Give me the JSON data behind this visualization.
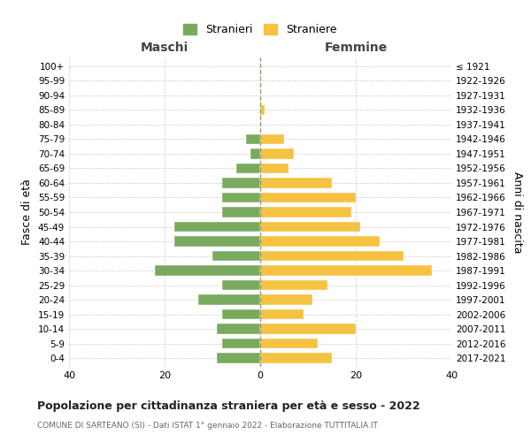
{
  "age_groups": [
    "0-4",
    "5-9",
    "10-14",
    "15-19",
    "20-24",
    "25-29",
    "30-34",
    "35-39",
    "40-44",
    "45-49",
    "50-54",
    "55-59",
    "60-64",
    "65-69",
    "70-74",
    "75-79",
    "80-84",
    "85-89",
    "90-94",
    "95-99",
    "100+"
  ],
  "birth_years": [
    "2017-2021",
    "2012-2016",
    "2007-2011",
    "2002-2006",
    "1997-2001",
    "1992-1996",
    "1987-1991",
    "1982-1986",
    "1977-1981",
    "1972-1976",
    "1967-1971",
    "1962-1966",
    "1957-1961",
    "1952-1956",
    "1947-1951",
    "1942-1946",
    "1937-1941",
    "1932-1936",
    "1927-1931",
    "1922-1926",
    "≤ 1921"
  ],
  "maschi": [
    9,
    8,
    9,
    8,
    13,
    8,
    22,
    10,
    18,
    18,
    8,
    8,
    8,
    5,
    2,
    3,
    0,
    0,
    0,
    0,
    0
  ],
  "femmine": [
    15,
    12,
    20,
    9,
    11,
    14,
    36,
    30,
    25,
    21,
    19,
    20,
    15,
    6,
    7,
    5,
    0,
    1,
    0,
    0,
    0
  ],
  "color_maschi": "#7aaa5e",
  "color_femmine": "#f5c242",
  "title": "Popolazione per cittadinanza straniera per età e sesso - 2022",
  "subtitle": "COMUNE DI SARTEANO (SI) - Dati ISTAT 1° gennaio 2022 - Elaborazione TUTTITALIA.IT",
  "ylabel_left": "Fasce di età",
  "ylabel_right": "Anni di nascita",
  "xlim": 40,
  "legend_maschi": "Stranieri",
  "legend_femmine": "Straniere",
  "header_maschi": "Maschi",
  "header_femmine": "Femmine",
  "bg_color": "#ffffff",
  "grid_color": "#cccccc"
}
